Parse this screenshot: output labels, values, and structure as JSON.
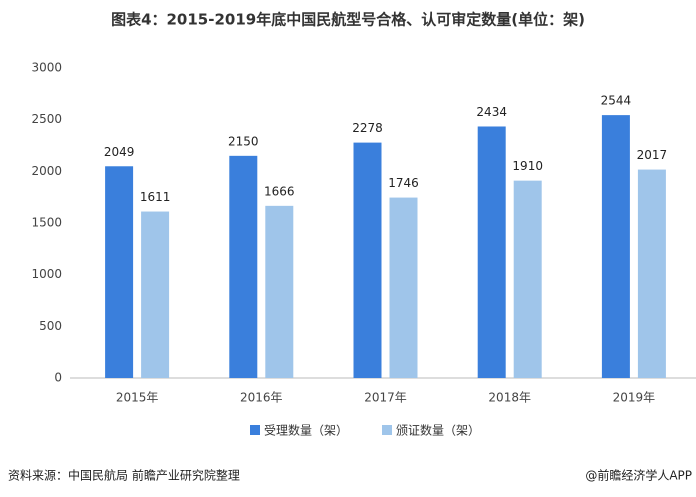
{
  "chart_data": {
    "type": "bar",
    "title": "图表4：2015-2019年底中国民航型号合格、认可审定数量(单位：架)",
    "categories": [
      "2015年",
      "2016年",
      "2017年",
      "2018年",
      "2019年"
    ],
    "series": [
      {
        "name": "受理数量（架）",
        "color": "#3a7fdc",
        "values": [
          2049,
          2150,
          2278,
          2434,
          2544
        ]
      },
      {
        "name": "颁证数量（架）",
        "color": "#9fc5ea",
        "values": [
          1611,
          1666,
          1746,
          1910,
          2017
        ]
      }
    ],
    "ylim": [
      0,
      3000
    ],
    "yticks": [
      0,
      500,
      1000,
      1500,
      2000,
      2500,
      3000
    ],
    "grid": false,
    "source": "资料来源：中国民航局 前瞻产业研究院整理",
    "watermark": "@前瞻经济学人APP"
  }
}
